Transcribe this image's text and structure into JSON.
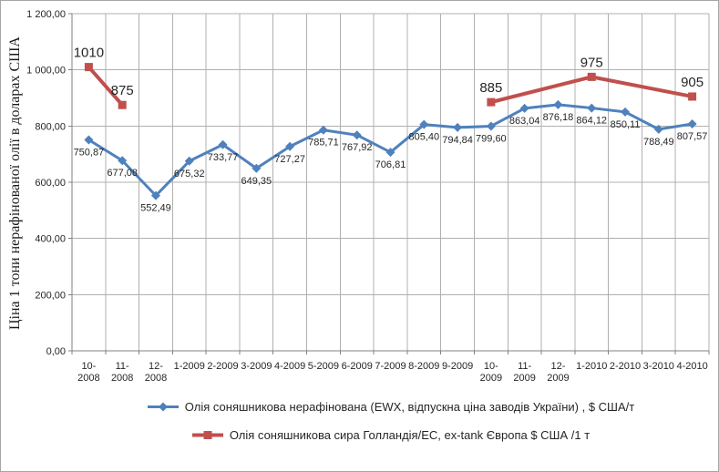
{
  "colors": {
    "grid": "#B0B0B0",
    "axis": "#808080",
    "text": "#262626",
    "border": "#A6A6A6"
  },
  "chart_data": {
    "type": "line",
    "title": "",
    "xlabel": "",
    "ylabel": "Ціна 1 тони нерафінованої олії в доларах США",
    "ylim": [
      0,
      1200
    ],
    "y_tick_step": 200,
    "y_tick_labels": [
      "0,00",
      "200,00",
      "400,00",
      "600,00",
      "800,00",
      "1 000,00",
      "1 200,00"
    ],
    "grid": true,
    "legend_position": "bottom",
    "categories": [
      "10-2008",
      "11-2008",
      "12-2008",
      "1-2009",
      "2-2009",
      "3-2009",
      "4-2009",
      "5-2009",
      "6-2009",
      "7-2009",
      "8-2009",
      "9-2009",
      "10-2009",
      "11-2009",
      "12-2009",
      "1-2010",
      "2-2010",
      "3-2010",
      "4-2010"
    ],
    "series": [
      {
        "name": "Олія соняшникова нерафінована (EWX, відпускна ціна заводів України) , $ США/т",
        "color": "#4F81BD",
        "marker": "diamond",
        "line_width": 3,
        "label_position": "below",
        "values": [
          750.87,
          677.08,
          552.49,
          675.32,
          733.77,
          649.35,
          727.27,
          785.71,
          767.92,
          706.81,
          805.4,
          794.84,
          799.6,
          863.04,
          876.18,
          864.12,
          850.11,
          788.49,
          807.57
        ],
        "value_labels": [
          "750,87",
          "677,08",
          "552,49",
          "675,32",
          "733,77",
          "649,35",
          "727,27",
          "785,71",
          "767,92",
          "706,81",
          "805,40",
          "794,84",
          "799,60",
          "863,04",
          "876,18",
          "864,12",
          "850,11",
          "788,49",
          "807,57"
        ]
      },
      {
        "name": "Олія соняшникова сира Голландія/ЕС, ex-tank Європа $ США /1 т",
        "color": "#C0504D",
        "marker": "square",
        "line_width": 4,
        "label_position": "above",
        "segments": [
          {
            "categories": [
              "10-2008",
              "11-2008"
            ],
            "values": [
              1010,
              875
            ],
            "value_labels": [
              "1010",
              "875"
            ]
          },
          {
            "categories": [
              "10-2009",
              "1-2010",
              "4-2010"
            ],
            "values": [
              885,
              975,
              905
            ],
            "value_labels": [
              "885",
              "975",
              "905"
            ]
          }
        ]
      }
    ]
  }
}
